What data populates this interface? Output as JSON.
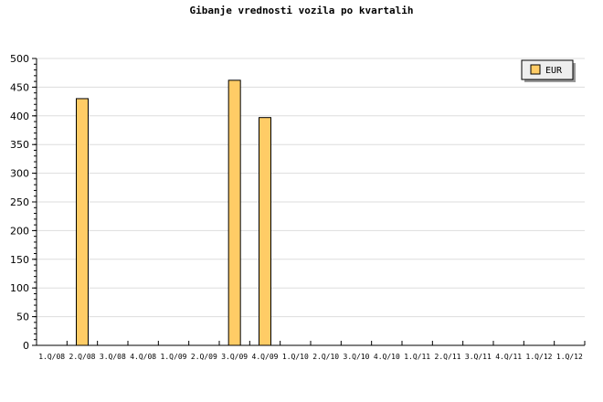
{
  "chart_data": {
    "type": "bar",
    "title": "Gibanje vrednosti vozila po kvartalih",
    "categories": [
      "1.Q/08",
      "2.Q/08",
      "3.Q/08",
      "4.Q/08",
      "1.Q/09",
      "2.Q/09",
      "3.Q/09",
      "4.Q/09",
      "1.Q/10",
      "2.Q/10",
      "3.Q/10",
      "4.Q/10",
      "1.Q/11",
      "2.Q/11",
      "3.Q/11",
      "4.Q/11",
      "1.Q/12",
      "1.Q/12"
    ],
    "series": [
      {
        "name": "EUR",
        "values": [
          null,
          430,
          null,
          null,
          null,
          null,
          462,
          397,
          null,
          null,
          null,
          null,
          null,
          null,
          null,
          null,
          null,
          null
        ],
        "color": "#ffcc66"
      }
    ],
    "ylim": [
      0,
      500
    ],
    "yticks": [
      0,
      50,
      100,
      150,
      200,
      250,
      300,
      350,
      400,
      450,
      500
    ],
    "grid": true,
    "legend": "top-right",
    "xlabel": "",
    "ylabel": ""
  }
}
